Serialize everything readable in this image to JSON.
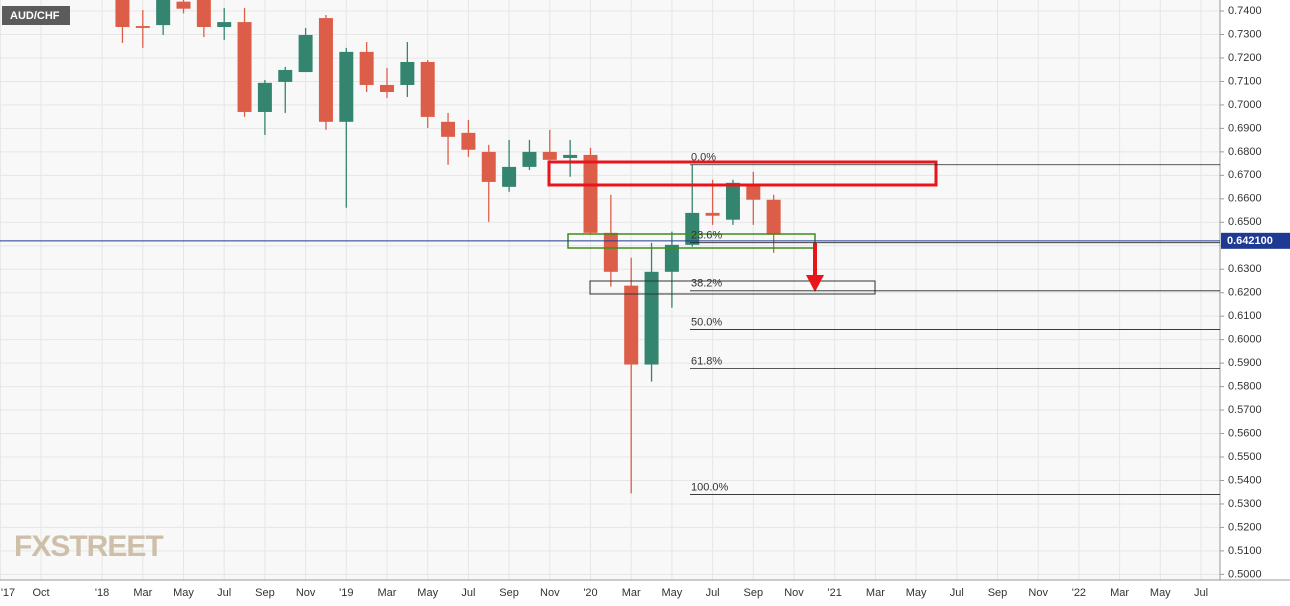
{
  "chart_data": {
    "type": "candlestick",
    "title": "AUD/CHF",
    "watermark": "FXSTREET",
    "categories": [
      "'17",
      null,
      "Oct",
      null,
      null,
      "'18",
      null,
      "Mar",
      null,
      "May",
      null,
      "Jul",
      null,
      "Sep",
      null,
      "Nov",
      null,
      "'19",
      null,
      "Mar",
      null,
      "May",
      null,
      "Jul",
      null,
      "Sep",
      null,
      "Nov",
      null,
      "'20",
      null,
      "Mar",
      null,
      "May",
      null,
      "Jul",
      null,
      "Sep",
      null,
      "Nov",
      null,
      "'21",
      null,
      "Mar",
      null,
      "May",
      null,
      "Jul",
      null,
      "Sep",
      null,
      "Nov",
      null,
      "'22",
      null,
      "Mar",
      null,
      "May",
      null,
      "Jul"
    ],
    "open": [
      null,
      null,
      null,
      null,
      null,
      null,
      0.745,
      0.7336,
      0.734,
      0.744,
      0.745,
      0.7332,
      0.7353,
      0.697,
      0.7098,
      0.714,
      0.737,
      0.6928,
      0.7226,
      0.7085,
      0.7085,
      0.7183,
      0.6928,
      0.6881,
      0.68,
      0.6651,
      0.6736,
      0.68,
      0.6774,
      0.6787,
      0.6455,
      0.623,
      0.5894,
      0.6289,
      0.6404,
      0.654,
      0.6511,
      0.666,
      0.6596,
      null,
      null,
      null,
      null,
      null,
      null,
      null,
      null,
      null,
      null,
      null,
      null,
      null,
      null,
      null,
      null,
      null,
      null,
      null,
      null,
      null
    ],
    "high": [
      null,
      null,
      null,
      null,
      null,
      null,
      0.747,
      0.7404,
      0.747,
      0.746,
      0.747,
      0.7413,
      0.7413,
      0.7106,
      0.7162,
      0.7328,
      0.7383,
      0.7243,
      0.7268,
      0.7157,
      0.7268,
      0.7191,
      0.6966,
      0.6936,
      0.683,
      0.6851,
      0.6851,
      0.6894,
      0.6851,
      0.6817,
      0.6617,
      0.6349,
      0.6413,
      0.646,
      0.6745,
      0.6681,
      0.6681,
      0.6715,
      0.6617,
      null,
      null,
      null,
      null,
      null,
      null,
      null,
      null,
      null,
      null,
      null,
      null,
      null,
      null,
      null,
      null,
      null,
      null,
      null,
      null,
      null
    ],
    "low": [
      null,
      null,
      null,
      null,
      null,
      null,
      0.7264,
      0.7243,
      0.7298,
      0.739,
      0.7289,
      0.7277,
      0.6949,
      0.6872,
      0.6966,
      0.714,
      0.6894,
      0.6562,
      0.7055,
      0.703,
      0.7034,
      0.6902,
      0.6745,
      0.6779,
      0.6502,
      0.663,
      0.6723,
      0.6745,
      0.6694,
      0.6447,
      0.6226,
      0.5345,
      0.5821,
      0.6136,
      0.6396,
      0.6489,
      0.6489,
      0.6489,
      0.637,
      null,
      null,
      null,
      null,
      null,
      null,
      null,
      null,
      null,
      null,
      null,
      null,
      null,
      null,
      null,
      null,
      null,
      null,
      null,
      null,
      null
    ],
    "close": [
      null,
      null,
      null,
      null,
      null,
      null,
      0.7332,
      0.7328,
      0.745,
      0.741,
      0.7332,
      0.7353,
      0.697,
      0.7094,
      0.7149,
      0.7298,
      0.6928,
      0.7226,
      0.7085,
      0.7055,
      0.7183,
      0.6949,
      0.6864,
      0.6809,
      0.6672,
      0.6736,
      0.68,
      0.6766,
      0.6787,
      0.6455,
      0.6289,
      0.5894,
      0.6289,
      0.6404,
      0.654,
      0.6528,
      0.6668,
      0.6596,
      0.6447,
      null,
      null,
      null,
      null,
      null,
      null,
      null,
      null,
      null,
      null,
      null,
      null,
      null,
      null,
      null,
      null,
      null,
      null,
      null,
      null,
      null
    ],
    "up_color": "#34856f",
    "down_color": "#dd5e48",
    "ylim": [
      0.4976,
      0.7447
    ],
    "yticks": [
      {
        "value": 0.5,
        "label": "0.5000"
      },
      {
        "value": 0.51,
        "label": "0.5100"
      },
      {
        "value": 0.52,
        "label": "0.5200"
      },
      {
        "value": 0.53,
        "label": "0.5300"
      },
      {
        "value": 0.54,
        "label": "0.5400"
      },
      {
        "value": 0.55,
        "label": "0.5500"
      },
      {
        "value": 0.56,
        "label": "0.5600"
      },
      {
        "value": 0.57,
        "label": "0.5700"
      },
      {
        "value": 0.58,
        "label": "0.5800"
      },
      {
        "value": 0.59,
        "label": "0.5900"
      },
      {
        "value": 0.6,
        "label": "0.6000"
      },
      {
        "value": 0.61,
        "label": "0.6100"
      },
      {
        "value": 0.62,
        "label": "0.6200"
      },
      {
        "value": 0.63,
        "label": "0.6300"
      },
      {
        "value": 0.64,
        "label": "0.6400"
      },
      {
        "value": 0.65,
        "label": "0.6500"
      },
      {
        "value": 0.66,
        "label": "0.6600"
      },
      {
        "value": 0.67,
        "label": "0.6700"
      },
      {
        "value": 0.68,
        "label": "0.6800"
      },
      {
        "value": 0.69,
        "label": "0.6900"
      },
      {
        "value": 0.7,
        "label": "0.7000"
      },
      {
        "value": 0.71,
        "label": "0.7100"
      },
      {
        "value": 0.72,
        "label": "0.7200"
      },
      {
        "value": 0.73,
        "label": "0.7300"
      },
      {
        "value": 0.74,
        "label": "0.7400"
      }
    ],
    "grid": true,
    "current_price": {
      "value": 0.6421,
      "label": "0.642100"
    },
    "current_price_color": "#1f3a93",
    "fib_levels": [
      {
        "label": "0.0%",
        "price": 0.6745
      },
      {
        "label": "23.6%",
        "price": 0.6413
      },
      {
        "label": "38.2%",
        "price": 0.6208
      },
      {
        "label": "50.0%",
        "price": 0.6043
      },
      {
        "label": "61.8%",
        "price": 0.5877
      },
      {
        "label": "100.0%",
        "price": 0.534
      }
    ]
  }
}
